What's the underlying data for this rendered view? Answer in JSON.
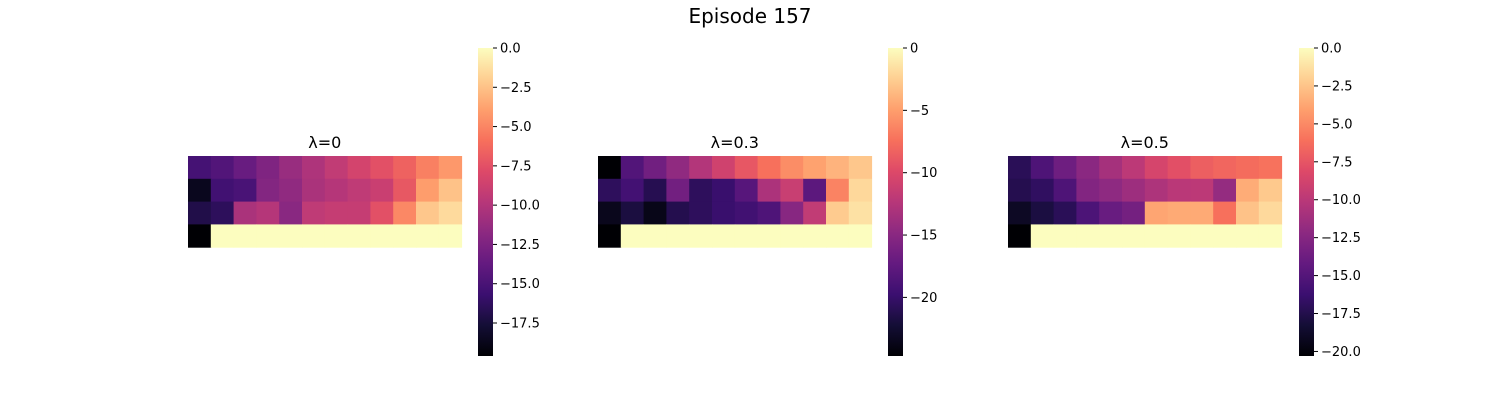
{
  "title": "Episode 157",
  "chart_data": [
    {
      "type": "heatmap",
      "title": "λ=0",
      "colormap": "magma",
      "vmin": -19.6,
      "vmax": 0,
      "colorbar_ticks": [
        0,
        -2.5,
        -5,
        -7.5,
        -10,
        -12.5,
        -15,
        -17.5
      ],
      "colorbar_tick_labels": [
        "0.0",
        "−2.5",
        "−5.0",
        "−7.5",
        "−10.0",
        "−12.5",
        "−15.0",
        "−17.5"
      ],
      "values": [
        [
          -15.2,
          -14.6,
          -13.5,
          -12.4,
          -11.2,
          -10.2,
          -9.3,
          -8.4,
          -7.5,
          -6.6,
          -5.2,
          -4.2
        ],
        [
          -18.6,
          -15.4,
          -15.0,
          -12.2,
          -11.6,
          -10.4,
          -9.9,
          -9.4,
          -8.9,
          -7.1,
          -4.0,
          -2.5
        ],
        [
          -17.0,
          -16.4,
          -10.4,
          -9.9,
          -11.9,
          -9.4,
          -9.1,
          -9.1,
          -7.5,
          -4.9,
          -2.3,
          -1.5
        ],
        [
          -19.6,
          0,
          0,
          0,
          0,
          0,
          0,
          0,
          0,
          0,
          0,
          0
        ]
      ]
    },
    {
      "type": "heatmap",
      "title": "λ=0.3",
      "colormap": "magma",
      "vmin": -24.7,
      "vmax": 0,
      "colorbar_ticks": [
        0,
        -5,
        -10,
        -15,
        -20
      ],
      "colorbar_tick_labels": [
        "0",
        "−5",
        "−10",
        "−15",
        "−20"
      ],
      "values": [
        [
          -24.7,
          -18.4,
          -16.5,
          -14.6,
          -12.6,
          -10.8,
          -9.0,
          -7.4,
          -5.9,
          -4.8,
          -3.9,
          -2.9
        ],
        [
          -20.6,
          -19.3,
          -21.1,
          -16.4,
          -20.6,
          -19.9,
          -18.1,
          -13.0,
          -11.3,
          -17.8,
          -6.4,
          -2.0
        ],
        [
          -23.5,
          -21.8,
          -23.7,
          -21.2,
          -20.6,
          -19.9,
          -19.4,
          -18.6,
          -15.1,
          -11.7,
          -2.7,
          -1.5
        ],
        [
          -24.7,
          0,
          0,
          0,
          0,
          0,
          0,
          0,
          0,
          0,
          0,
          0
        ]
      ]
    },
    {
      "type": "heatmap",
      "title": "λ=0.5",
      "colormap": "magma",
      "vmin": -20.3,
      "vmax": 0,
      "colorbar_ticks": [
        0,
        -2.5,
        -5,
        -7.5,
        -10,
        -12.5,
        -15,
        -17.5,
        -20
      ],
      "colorbar_tick_labels": [
        "0.0",
        "−2.5",
        "−5.0",
        "−7.5",
        "−10.0",
        "−12.5",
        "−15.0",
        "−17.5",
        "−20.0"
      ],
      "values": [
        [
          -17.1,
          -15.3,
          -13.7,
          -12.3,
          -11.0,
          -9.9,
          -8.6,
          -7.8,
          -7.0,
          -6.6,
          -6.3,
          -6.0
        ],
        [
          -17.4,
          -16.8,
          -15.3,
          -12.7,
          -12.1,
          -11.4,
          -10.6,
          -10.0,
          -9.9,
          -11.8,
          -3.5,
          -2.3
        ],
        [
          -19.0,
          -17.9,
          -17.1,
          -15.4,
          -14.0,
          -13.4,
          -3.8,
          -3.6,
          -3.6,
          -6.1,
          -2.6,
          -1.6
        ],
        [
          -20.3,
          0,
          0,
          0,
          0,
          0,
          0,
          0,
          0,
          0,
          0,
          0
        ]
      ]
    }
  ]
}
